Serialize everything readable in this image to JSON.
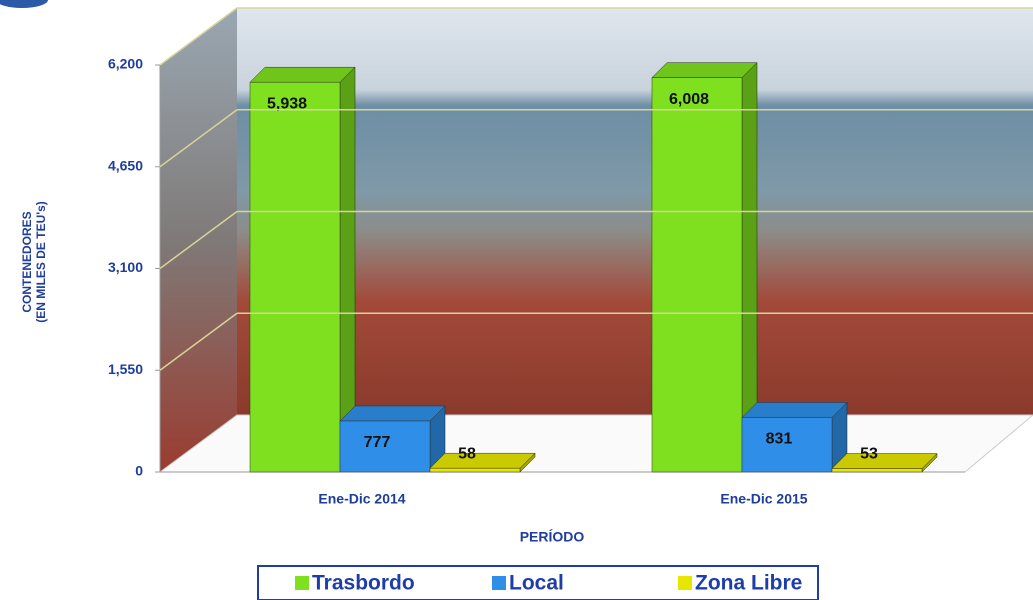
{
  "chart_data": {
    "type": "bar3d",
    "categories": [
      "Ene-Dic 2014",
      "Ene-Dic 2015"
    ],
    "series": [
      {
        "name": "Trasbordo",
        "color": "#7fe01f",
        "values": [
          5938,
          6008
        ],
        "value_labels": [
          "5,938",
          "6,008"
        ]
      },
      {
        "name": "Local",
        "color": "#2f8fe8",
        "values": [
          777,
          831
        ]
      },
      {
        "name": "Zona Libre",
        "color": "#e6e600",
        "values": [
          58,
          53
        ]
      }
    ],
    "ylim": [
      0,
      6200
    ],
    "yticks": [
      0,
      {
        "value": 1550,
        "label": "1,550"
      },
      {
        "value": 3100,
        "label": "3,100"
      },
      {
        "value": 4650,
        "label": "4,650"
      },
      {
        "value": 6200,
        "label": "6,200"
      }
    ],
    "ylabel": [
      "CONTENEDORES",
      "(EN MILES DE TEU's)"
    ],
    "xlabel": "PERÍODO",
    "grid": true,
    "legend": "bottom"
  }
}
